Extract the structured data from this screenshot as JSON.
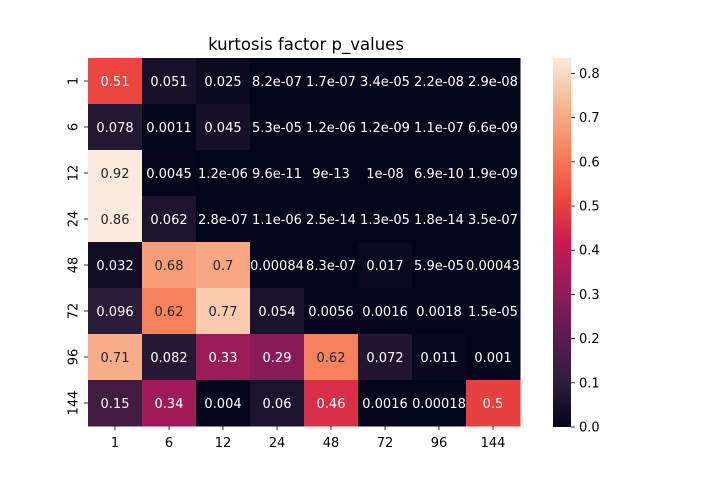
{
  "chart_data": {
    "type": "heatmap",
    "title": "kurtosis factor p_values",
    "xlabel": "",
    "ylabel": "",
    "x_categories": [
      "1",
      "6",
      "12",
      "24",
      "48",
      "72",
      "96",
      "144"
    ],
    "y_categories": [
      "1",
      "6",
      "12",
      "24",
      "48",
      "72",
      "96",
      "144"
    ],
    "values": [
      [
        0.51,
        0.051,
        0.025,
        8.2e-07,
        1.7e-07,
        3.4e-05,
        2.2e-08,
        2.9e-08
      ],
      [
        0.078,
        0.0011,
        0.045,
        5.3e-05,
        1.2e-06,
        1.2e-09,
        1.1e-07,
        6.6e-09
      ],
      [
        0.92,
        0.0045,
        1.2e-06,
        9.6e-11,
        9e-13,
        1e-08,
        6.9e-10,
        1.9e-09
      ],
      [
        0.86,
        0.062,
        2.8e-07,
        1.1e-06,
        2.5e-14,
        1.3e-05,
        1.8e-14,
        3.5e-07
      ],
      [
        0.032,
        0.68,
        0.7,
        0.00084,
        8.3e-07,
        0.017,
        5.9e-05,
        0.00043
      ],
      [
        0.096,
        0.62,
        0.77,
        0.054,
        0.0056,
        0.0016,
        0.0018,
        1.5e-05
      ],
      [
        0.71,
        0.082,
        0.33,
        0.29,
        0.62,
        0.072,
        0.011,
        0.001
      ],
      [
        0.15,
        0.34,
        0.004,
        0.06,
        0.46,
        0.0016,
        0.00018,
        0.5
      ]
    ],
    "annotations": [
      [
        "0.51",
        "0.051",
        "0.025",
        "8.2e-07",
        "1.7e-07",
        "3.4e-05",
        "2.2e-08",
        "2.9e-08"
      ],
      [
        "0.078",
        "0.0011",
        "0.045",
        "5.3e-05",
        "1.2e-06",
        "1.2e-09",
        "1.1e-07",
        "6.6e-09"
      ],
      [
        "0.92",
        "0.0045",
        "1.2e-06",
        "9.6e-11",
        "9e-13",
        "1e-08",
        "6.9e-10",
        "1.9e-09"
      ],
      [
        "0.86",
        "0.062",
        "2.8e-07",
        "1.1e-06",
        "2.5e-14",
        "1.3e-05",
        "1.8e-14",
        "3.5e-07"
      ],
      [
        "0.032",
        "0.68",
        "0.7",
        "0.00084",
        "8.3e-07",
        "0.017",
        "5.9e-05",
        "0.00043"
      ],
      [
        "0.096",
        "0.62",
        "0.77",
        "0.054",
        "0.0056",
        "0.0016",
        "0.0018",
        "1.5e-05"
      ],
      [
        "0.71",
        "0.082",
        "0.33",
        "0.29",
        "0.62",
        "0.072",
        "0.011",
        "0.001"
      ],
      [
        "0.15",
        "0.34",
        "0.004",
        "0.06",
        "0.46",
        "0.0016",
        "0.00018",
        "0.5"
      ]
    ],
    "color_scale": {
      "name": "rocket",
      "vmin": 0.0,
      "vmax": 0.835,
      "ticks": [
        "0.0",
        "0.1",
        "0.2",
        "0.3",
        "0.4",
        "0.5",
        "0.6",
        "0.7",
        "0.8"
      ],
      "stops": [
        "#03051a",
        "#2e1e3c",
        "#5f1a4e",
        "#921c5b",
        "#c91b4f",
        "#ee4a3d",
        "#f6845f",
        "#f8b692",
        "#faebdd"
      ]
    },
    "grid": false,
    "legend": "colorbar-right"
  }
}
